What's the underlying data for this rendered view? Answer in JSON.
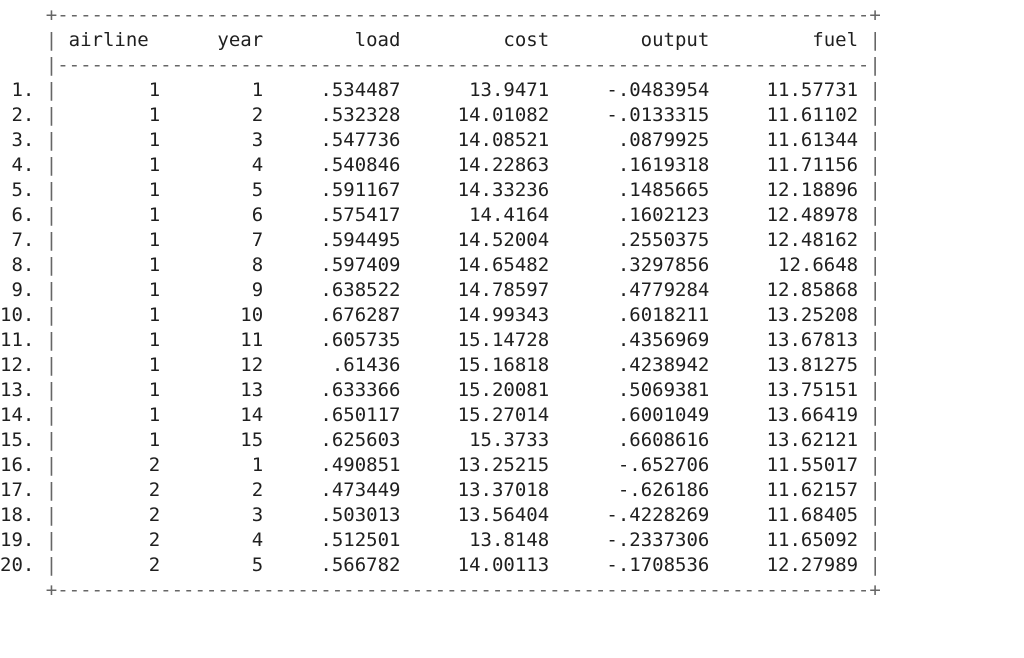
{
  "table": {
    "columns": [
      "airline",
      "year",
      "load",
      "cost",
      "output",
      "fuel"
    ],
    "rows": [
      {
        "index": "1.",
        "airline": "1",
        "year": "1",
        "load": ".534487",
        "cost": "13.9471",
        "output": "-.0483954",
        "fuel": "11.57731"
      },
      {
        "index": "2.",
        "airline": "1",
        "year": "2",
        "load": ".532328",
        "cost": "14.01082",
        "output": "-.0133315",
        "fuel": "11.61102"
      },
      {
        "index": "3.",
        "airline": "1",
        "year": "3",
        "load": ".547736",
        "cost": "14.08521",
        "output": ".0879925",
        "fuel": "11.61344"
      },
      {
        "index": "4.",
        "airline": "1",
        "year": "4",
        "load": ".540846",
        "cost": "14.22863",
        "output": ".1619318",
        "fuel": "11.71156"
      },
      {
        "index": "5.",
        "airline": "1",
        "year": "5",
        "load": ".591167",
        "cost": "14.33236",
        "output": ".1485665",
        "fuel": "12.18896"
      },
      {
        "index": "6.",
        "airline": "1",
        "year": "6",
        "load": ".575417",
        "cost": "14.4164",
        "output": ".1602123",
        "fuel": "12.48978"
      },
      {
        "index": "7.",
        "airline": "1",
        "year": "7",
        "load": ".594495",
        "cost": "14.52004",
        "output": ".2550375",
        "fuel": "12.48162"
      },
      {
        "index": "8.",
        "airline": "1",
        "year": "8",
        "load": ".597409",
        "cost": "14.65482",
        "output": ".3297856",
        "fuel": "12.6648"
      },
      {
        "index": "9.",
        "airline": "1",
        "year": "9",
        "load": ".638522",
        "cost": "14.78597",
        "output": ".4779284",
        "fuel": "12.85868"
      },
      {
        "index": "10.",
        "airline": "1",
        "year": "10",
        "load": ".676287",
        "cost": "14.99343",
        "output": ".6018211",
        "fuel": "13.25208"
      },
      {
        "index": "11.",
        "airline": "1",
        "year": "11",
        "load": ".605735",
        "cost": "15.14728",
        "output": ".4356969",
        "fuel": "13.67813"
      },
      {
        "index": "12.",
        "airline": "1",
        "year": "12",
        "load": ".61436",
        "cost": "15.16818",
        "output": ".4238942",
        "fuel": "13.81275"
      },
      {
        "index": "13.",
        "airline": "1",
        "year": "13",
        "load": ".633366",
        "cost": "15.20081",
        "output": ".5069381",
        "fuel": "13.75151"
      },
      {
        "index": "14.",
        "airline": "1",
        "year": "14",
        "load": ".650117",
        "cost": "15.27014",
        "output": ".6001049",
        "fuel": "13.66419"
      },
      {
        "index": "15.",
        "airline": "1",
        "year": "15",
        "load": ".625603",
        "cost": "15.3733",
        "output": ".6608616",
        "fuel": "13.62121"
      },
      {
        "index": "16.",
        "airline": "2",
        "year": "1",
        "load": ".490851",
        "cost": "13.25215",
        "output": "-.652706",
        "fuel": "11.55017"
      },
      {
        "index": "17.",
        "airline": "2",
        "year": "2",
        "load": ".473449",
        "cost": "13.37018",
        "output": "-.626186",
        "fuel": "11.62157"
      },
      {
        "index": "18.",
        "airline": "2",
        "year": "3",
        "load": ".503013",
        "cost": "13.56404",
        "output": "-.4228269",
        "fuel": "11.68405"
      },
      {
        "index": "19.",
        "airline": "2",
        "year": "4",
        "load": ".512501",
        "cost": "13.8148",
        "output": "-.2337306",
        "fuel": "11.65092"
      },
      {
        "index": "20.",
        "airline": "2",
        "year": "5",
        "load": ".566782",
        "cost": "14.00113",
        "output": "-.1708536",
        "fuel": "12.27989"
      }
    ]
  }
}
